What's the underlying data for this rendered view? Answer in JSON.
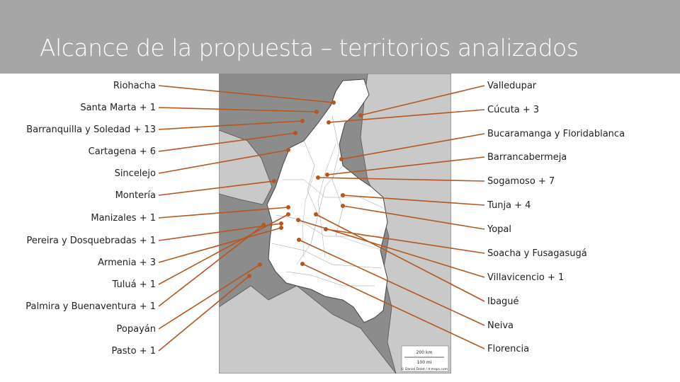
{
  "title": "Alcance de la propuesta – territorios analizados",
  "colors": {
    "line": "#b5571f",
    "title_bar": "#a6a6a6",
    "sea": "#8c8c8c",
    "neighbor": "#c9c9c9",
    "country": "#ffffff"
  },
  "map": {
    "scale_km": "200 km",
    "scale_mi": "100 mi",
    "credit": "© Daniel Dalet / d-maps.com"
  },
  "left_labels": [
    "Riohacha",
    "Santa Marta + 1",
    "Barranquilla y Soledad + 13",
    "Cartagena + 6",
    "Sincelejo",
    "Montería",
    "Manizales + 1",
    "Pereira y Dosquebradas + 1",
    "Armenia + 3",
    "Tuluá + 1",
    "Palmira y Buenaventura + 1",
    "Popayán",
    "Pasto + 1"
  ],
  "right_labels": [
    "Valledupar",
    "Cúcuta + 3",
    "Bucaramanga y Floridablanca",
    "Barrancabermeja",
    "Sogamoso + 7",
    "Tunja + 4",
    "Yopal",
    "Soacha y Fusagasugá",
    "Villavicencio + 1",
    "Ibagué",
    "Neiva",
    "Florencia"
  ]
}
